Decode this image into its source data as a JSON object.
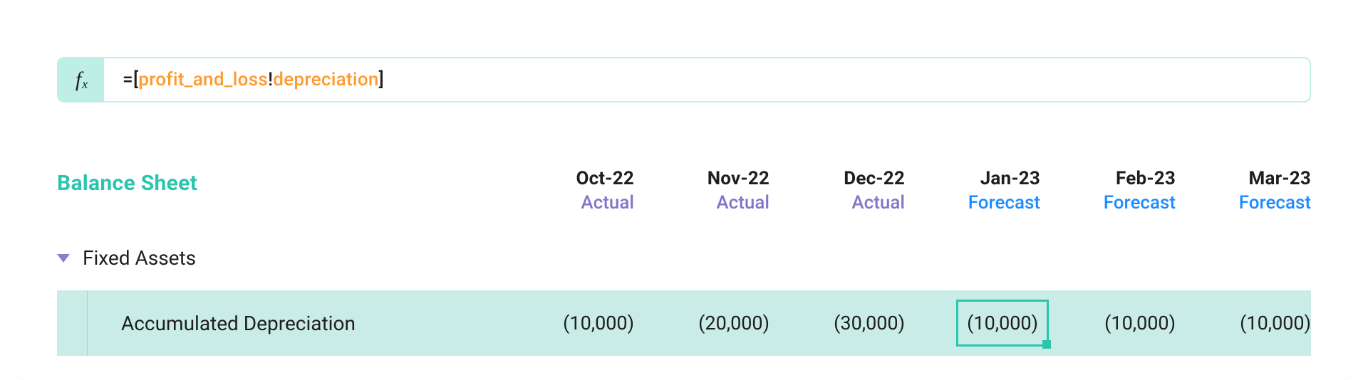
{
  "colors": {
    "teal": "#2cc4ae",
    "teal_light": "#bfeee6",
    "row_bg": "#c9ece6",
    "purple": "#8176c7",
    "blue": "#1e8bff",
    "orange": "#ff9a2e",
    "ink": "#1e1e1e"
  },
  "formula": {
    "eq": "=",
    "lb": "[",
    "ref_sheet": "profit_and_loss",
    "bang": "!",
    "ref_field": "depreciation",
    "rb": "]"
  },
  "title": "Balance Sheet",
  "columns": [
    {
      "period": "Oct-22",
      "kind": "Actual",
      "kind_type": "actual"
    },
    {
      "period": "Nov-22",
      "kind": "Actual",
      "kind_type": "actual"
    },
    {
      "period": "Dec-22",
      "kind": "Actual",
      "kind_type": "actual"
    },
    {
      "period": "Jan-23",
      "kind": "Forecast",
      "kind_type": "forecast"
    },
    {
      "period": "Feb-23",
      "kind": "Forecast",
      "kind_type": "forecast"
    },
    {
      "period": "Mar-23",
      "kind": "Forecast",
      "kind_type": "forecast"
    }
  ],
  "section": {
    "label": "Fixed Assets",
    "expanded": true
  },
  "row": {
    "label": "Accumulated Depreciation",
    "values": [
      "(10,000)",
      "(20,000)",
      "(30,000)",
      "(10,000)",
      "(10,000)",
      "(10,000)"
    ],
    "selected_index": 3
  }
}
